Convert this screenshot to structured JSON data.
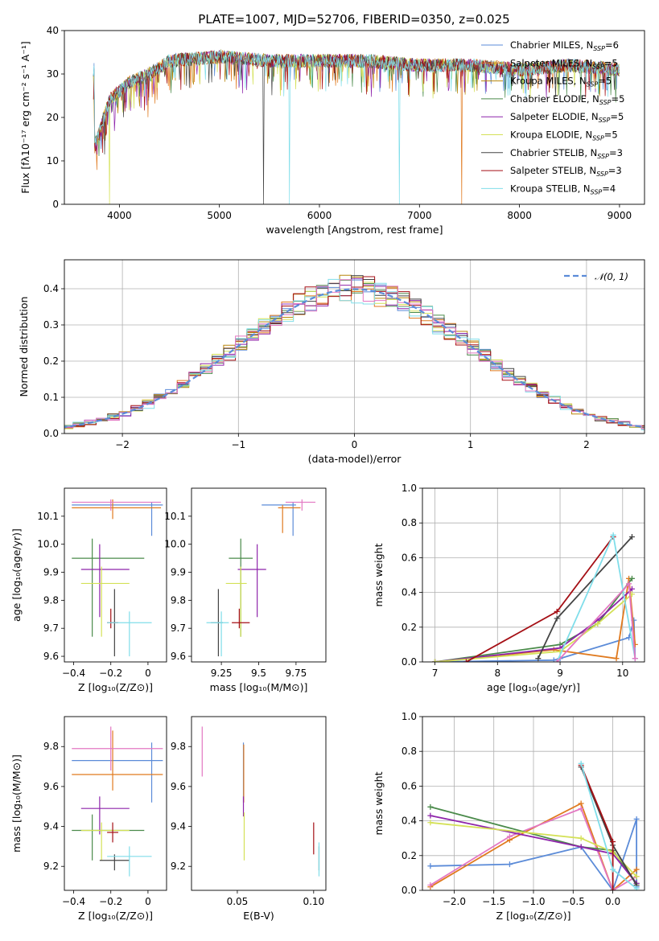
{
  "title": "PLATE=1007, MJD=52706, FIBERID=0350, z=0.025",
  "colors": [
    "#5b8bd8",
    "#e07a1f",
    "#b8860b",
    "#4a8a4a",
    "#8e24aa",
    "#d4e157",
    "#444444",
    "#a50f15",
    "#80deea",
    "#e377c2"
  ],
  "chart_data": [
    {
      "name": "spectrum",
      "type": "line",
      "xlabel": "wavelength [Angstrom, rest frame]",
      "ylabel": "Flux [fλ10⁻¹⁷ erg cm⁻² s⁻¹ A⁻¹]",
      "xlim": [
        3450,
        9250
      ],
      "ylim": [
        0,
        40
      ],
      "xticks": [
        4000,
        5000,
        6000,
        7000,
        8000,
        9000
      ],
      "yticks": [
        0,
        10,
        20,
        30,
        40
      ],
      "grid": false,
      "legend": "top-right",
      "continuum": {
        "x": [
          3750,
          3900,
          4100,
          4300,
          4500,
          5000,
          5500,
          6000,
          6500,
          7000,
          7500,
          8000,
          8500,
          9000
        ],
        "y": [
          13,
          24,
          28,
          30,
          33,
          34,
          33,
          33,
          33,
          32,
          32,
          31,
          32,
          31
        ]
      },
      "drops": [
        {
          "series": 5,
          "x": 3900,
          "y": 0
        },
        {
          "series": 6,
          "x": 5440,
          "y": 0
        },
        {
          "series": 8,
          "x": 5700,
          "y": 0
        },
        {
          "series": 8,
          "x": 6800,
          "y": 0
        },
        {
          "series": 1,
          "x": 7420,
          "y": 0
        }
      ],
      "series": [
        {
          "name": "Chabrier MILES, N",
          "sub": "SSP",
          "suffix": "=6",
          "color": 0
        },
        {
          "name": "Salpeter MILES, N",
          "sub": "SSP",
          "suffix": "=5",
          "color": 1
        },
        {
          "name": "Kroupa MILES, N",
          "sub": "SSP",
          "suffix": "=5",
          "color": 2
        },
        {
          "name": "Chabrier ELODIE, N",
          "sub": "SSP",
          "suffix": "=5",
          "color": 3
        },
        {
          "name": "Salpeter ELODIE, N",
          "sub": "SSP",
          "suffix": "=5",
          "color": 4
        },
        {
          "name": "Kroupa ELODIE, N",
          "sub": "SSP",
          "suffix": "=5",
          "color": 5
        },
        {
          "name": "Chabrier STELIB, N",
          "sub": "SSP",
          "suffix": "=3",
          "color": 6
        },
        {
          "name": "Salpeter STELIB, N",
          "sub": "SSP",
          "suffix": "=3",
          "color": 7
        },
        {
          "name": "Kroupa STELIB, N",
          "sub": "SSP",
          "suffix": "=4",
          "color": 8
        }
      ]
    },
    {
      "name": "residual-histogram",
      "type": "area",
      "xlabel": "(data-model)/error",
      "ylabel": "Normed distribution",
      "xlim": [
        -2.5,
        2.5
      ],
      "ylim": [
        0,
        0.48
      ],
      "xticks": [
        -2,
        -1,
        0,
        1,
        2
      ],
      "yticks": [
        0.0,
        0.1,
        0.2,
        0.3,
        0.4
      ],
      "xtick_labels": [
        "−2",
        "−1",
        "0",
        "1",
        "2"
      ],
      "grid": true,
      "legend": "top-right",
      "legend_label": "𝒩(0, 1)",
      "reference": {
        "name": "N(0,1)",
        "mean": 0,
        "sigma": 1,
        "color": 0
      }
    },
    {
      "name": "age-vs-Z",
      "type": "scatter",
      "xlabel": "Z [log₁₀(Z/Z⊙)]",
      "ylabel": "age  [log₁₀(age/yr)]",
      "xlim": [
        -0.45,
        0.1
      ],
      "ylim": [
        9.58,
        10.2
      ],
      "xticks": [
        -0.4,
        -0.2,
        0.0
      ],
      "yticks": [
        9.6,
        9.7,
        9.8,
        9.9,
        10.0,
        10.1
      ],
      "points": [
        {
          "c": 0,
          "x": 0.02,
          "y": 10.14,
          "xe": [
            -0.41,
            0.08
          ],
          "ye": [
            10.03,
            10.15
          ]
        },
        {
          "c": 1,
          "x": -0.19,
          "y": 10.13,
          "xe": [
            -0.41,
            0.07
          ],
          "ye": [
            10.09,
            10.16
          ]
        },
        {
          "c": 9,
          "x": -0.2,
          "y": 10.15,
          "xe": [
            -0.41,
            0.07
          ],
          "ye": [
            10.12,
            10.16
          ]
        },
        {
          "c": 3,
          "x": -0.3,
          "y": 9.95,
          "xe": [
            -0.41,
            -0.02
          ],
          "ye": [
            9.67,
            10.02
          ]
        },
        {
          "c": 4,
          "x": -0.26,
          "y": 9.91,
          "xe": [
            -0.36,
            -0.1
          ],
          "ye": [
            9.74,
            10.0
          ]
        },
        {
          "c": 5,
          "x": -0.25,
          "y": 9.86,
          "xe": [
            -0.36,
            -0.1
          ],
          "ye": [
            9.67,
            9.92
          ]
        },
        {
          "c": 6,
          "x": -0.18,
          "y": 9.72,
          "xe": [
            -0.2,
            -0.17
          ],
          "ye": [
            9.6,
            9.84
          ]
        },
        {
          "c": 7,
          "x": -0.2,
          "y": 9.72,
          "xe": [
            -0.22,
            -0.16
          ],
          "ye": [
            9.7,
            9.77
          ]
        },
        {
          "c": 8,
          "x": -0.1,
          "y": 9.72,
          "xe": [
            -0.22,
            0.02
          ],
          "ye": [
            9.6,
            9.76
          ]
        }
      ]
    },
    {
      "name": "age-vs-mass",
      "type": "scatter",
      "xlabel": "mass [log₁₀(M/M⊙)]",
      "ylabel": "",
      "xlim": [
        9.05,
        9.95
      ],
      "ylim": [
        9.58,
        10.2
      ],
      "xticks": [
        9.25,
        9.5,
        9.75
      ],
      "yticks": [
        9.6,
        9.7,
        9.8,
        9.9,
        10.0,
        10.1
      ],
      "points": [
        {
          "c": 0,
          "x": 9.73,
          "y": 10.14,
          "xe": [
            9.52,
            9.75
          ],
          "ye": [
            10.03,
            10.15
          ]
        },
        {
          "c": 1,
          "x": 9.66,
          "y": 10.13,
          "xe": [
            9.63,
            9.78
          ],
          "ye": [
            10.04,
            10.14
          ]
        },
        {
          "c": 9,
          "x": 9.79,
          "y": 10.15,
          "xe": [
            9.68,
            9.88
          ],
          "ye": [
            10.12,
            10.16
          ]
        },
        {
          "c": 3,
          "x": 9.38,
          "y": 9.95,
          "xe": [
            9.3,
            9.46
          ],
          "ye": [
            9.67,
            10.02
          ]
        },
        {
          "c": 4,
          "x": 9.49,
          "y": 9.91,
          "xe": [
            9.36,
            9.55
          ],
          "ye": [
            9.74,
            10.0
          ]
        },
        {
          "c": 5,
          "x": 9.38,
          "y": 9.86,
          "xe": [
            9.28,
            9.42
          ],
          "ye": [
            9.67,
            9.92
          ]
        },
        {
          "c": 6,
          "x": 9.23,
          "y": 9.72,
          "xe": [
            9.18,
            9.26
          ],
          "ye": [
            9.6,
            9.84
          ]
        },
        {
          "c": 7,
          "x": 9.37,
          "y": 9.72,
          "xe": [
            9.32,
            9.44
          ],
          "ye": [
            9.7,
            9.77
          ]
        },
        {
          "c": 8,
          "x": 9.25,
          "y": 9.72,
          "xe": [
            9.15,
            9.3
          ],
          "ye": [
            9.6,
            9.76
          ]
        }
      ]
    },
    {
      "name": "mass-weight-vs-age",
      "type": "line",
      "xlabel": "age  [log₁₀(age/yr)]",
      "ylabel": "mass weight",
      "xlim": [
        6.8,
        10.35
      ],
      "ylim": [
        0,
        1
      ],
      "xticks": [
        7,
        8,
        9,
        10
      ],
      "yticks": [
        0.0,
        0.2,
        0.4,
        0.6,
        0.8,
        1.0
      ],
      "grid": true,
      "series": [
        {
          "c": 0,
          "x": [
            7.0,
            8.9,
            9.0,
            10.1,
            10.18,
            10.2
          ],
          "y": [
            0.0,
            0.01,
            0.02,
            0.14,
            0.24,
            0.02
          ]
        },
        {
          "c": 1,
          "x": [
            7.0,
            8.9,
            9.9,
            10.1,
            10.2
          ],
          "y": [
            0.0,
            0.07,
            0.02,
            0.48,
            0.1
          ]
        },
        {
          "c": 3,
          "x": [
            7.0,
            9.0,
            9.6,
            10.15
          ],
          "y": [
            0.0,
            0.1,
            0.22,
            0.48
          ]
        },
        {
          "c": 4,
          "x": [
            7.0,
            9.0,
            9.6,
            10.15
          ],
          "y": [
            0.0,
            0.08,
            0.24,
            0.42
          ]
        },
        {
          "c": 5,
          "x": [
            7.0,
            9.0,
            9.6,
            10.15
          ],
          "y": [
            0.0,
            0.06,
            0.22,
            0.39
          ]
        },
        {
          "c": 6,
          "x": [
            8.65,
            8.95,
            10.15
          ],
          "y": [
            0.02,
            0.25,
            0.72
          ]
        },
        {
          "c": 7,
          "x": [
            7.5,
            8.95,
            9.85
          ],
          "y": [
            0.0,
            0.29,
            0.72
          ]
        },
        {
          "c": 8,
          "x": [
            8.95,
            9.85,
            10.2
          ],
          "y": [
            0.0,
            0.73,
            0.02
          ]
        },
        {
          "c": 9,
          "x": [
            8.95,
            10.1,
            10.2
          ],
          "y": [
            0.0,
            0.45,
            0.02
          ]
        }
      ]
    },
    {
      "name": "mass-vs-Z",
      "type": "scatter",
      "xlabel": "Z [log₁₀(Z/Z⊙)]",
      "ylabel": "mass [log₁₀(M/M⊙)]",
      "xlim": [
        -0.45,
        0.1
      ],
      "ylim": [
        9.08,
        9.95
      ],
      "xticks": [
        -0.4,
        -0.2,
        0.0
      ],
      "yticks": [
        9.2,
        9.4,
        9.6,
        9.8
      ],
      "points": [
        {
          "c": 0,
          "x": 0.02,
          "y": 9.73,
          "xe": [
            -0.41,
            0.08
          ],
          "ye": [
            9.52,
            9.82
          ]
        },
        {
          "c": 1,
          "x": -0.19,
          "y": 9.66,
          "xe": [
            -0.41,
            0.08
          ],
          "ye": [
            9.58,
            9.88
          ]
        },
        {
          "c": 9,
          "x": -0.2,
          "y": 9.79,
          "xe": [
            -0.41,
            0.08
          ],
          "ye": [
            9.68,
            9.9
          ]
        },
        {
          "c": 4,
          "x": -0.26,
          "y": 9.49,
          "xe": [
            -0.36,
            -0.1
          ],
          "ye": [
            9.36,
            9.55
          ]
        },
        {
          "c": 3,
          "x": -0.3,
          "y": 9.38,
          "xe": [
            -0.41,
            -0.02
          ],
          "ye": [
            9.23,
            9.46
          ]
        },
        {
          "c": 5,
          "x": -0.25,
          "y": 9.38,
          "xe": [
            -0.36,
            -0.1
          ],
          "ye": [
            9.23,
            9.42
          ]
        },
        {
          "c": 6,
          "x": -0.18,
          "y": 9.23,
          "xe": [
            -0.26,
            -0.1
          ],
          "ye": [
            9.18,
            9.26
          ]
        },
        {
          "c": 7,
          "x": -0.19,
          "y": 9.37,
          "xe": [
            -0.22,
            -0.16
          ],
          "ye": [
            9.32,
            9.42
          ]
        },
        {
          "c": 8,
          "x": -0.1,
          "y": 9.25,
          "xe": [
            -0.22,
            0.02
          ],
          "ye": [
            9.15,
            9.3
          ]
        }
      ]
    },
    {
      "name": "mass-vs-EBV",
      "type": "scatter",
      "xlabel": "E(B-V)",
      "ylabel": "",
      "xlim": [
        0.02,
        0.108
      ],
      "ylim": [
        9.08,
        9.95
      ],
      "xticks": [
        0.05,
        0.1
      ],
      "xtick_labels": [
        "0.05",
        "0.10"
      ],
      "yticks": [
        9.2,
        9.4,
        9.6,
        9.8
      ],
      "points": [
        {
          "c": 9,
          "x": 0.027,
          "y": 9.79,
          "ye": [
            9.65,
            9.9
          ]
        },
        {
          "c": 0,
          "x": 0.054,
          "y": 9.73,
          "ye": [
            9.52,
            9.82
          ]
        },
        {
          "c": 1,
          "x": 0.0542,
          "y": 9.66,
          "ye": [
            9.52,
            9.81
          ]
        },
        {
          "c": 4,
          "x": 0.054,
          "y": 9.49,
          "ye": [
            9.45,
            9.55
          ]
        },
        {
          "c": 5,
          "x": 0.0545,
          "y": 9.38,
          "ye": [
            9.23,
            9.47
          ]
        },
        {
          "c": 7,
          "x": 0.1,
          "y": 9.37,
          "ye": [
            9.26,
            9.42
          ]
        },
        {
          "c": 6,
          "x": 0.1035,
          "y": 9.23,
          "ye": [
            9.18,
            9.3
          ]
        },
        {
          "c": 8,
          "x": 0.1035,
          "y": 9.25,
          "ye": [
            9.15,
            9.32
          ]
        }
      ]
    },
    {
      "name": "mass-weight-vs-Z",
      "type": "line",
      "xlabel": "Z [log₁₀(Z/Z⊙)]",
      "ylabel": "mass weight",
      "xlim": [
        -2.4,
        0.4
      ],
      "ylim": [
        0,
        1
      ],
      "xticks": [
        -2.0,
        -1.5,
        -1.0,
        -0.5,
        0.0
      ],
      "xtick_labels": [
        "−2.0",
        "−1.5",
        "−1.0",
        "−0.5",
        "0.0"
      ],
      "yticks": [
        0.0,
        0.2,
        0.4,
        0.6,
        0.8,
        1.0
      ],
      "grid": true,
      "series": [
        {
          "c": 0,
          "x": [
            -2.3,
            -1.3,
            -0.4,
            0.0,
            0.3,
            0.3
          ],
          "y": [
            0.14,
            0.15,
            0.25,
            0.0,
            0.41,
            0.02
          ]
        },
        {
          "c": 1,
          "x": [
            -2.3,
            -1.3,
            -0.4,
            0.0,
            0.3
          ],
          "y": [
            0.02,
            0.29,
            0.5,
            0.0,
            0.12
          ]
        },
        {
          "c": 9,
          "x": [
            -2.3,
            -1.3,
            -0.4,
            0.0,
            0.3
          ],
          "y": [
            0.03,
            0.31,
            0.47,
            0.0,
            0.08
          ]
        },
        {
          "c": 3,
          "x": [
            -2.3,
            -0.4,
            0.0,
            0.3
          ],
          "y": [
            0.48,
            0.25,
            0.23,
            0.04
          ]
        },
        {
          "c": 4,
          "x": [
            -2.3,
            -0.4,
            0.0,
            0.3
          ],
          "y": [
            0.43,
            0.25,
            0.21,
            0.04
          ]
        },
        {
          "c": 5,
          "x": [
            -2.3,
            -0.4,
            0.0,
            0.3
          ],
          "y": [
            0.39,
            0.3,
            0.22,
            0.08
          ]
        },
        {
          "c": 6,
          "x": [
            -0.4,
            0.0,
            0.3
          ],
          "y": [
            0.71,
            0.26,
            0.03
          ]
        },
        {
          "c": 7,
          "x": [
            -0.4,
            0.0,
            0.0
          ],
          "y": [
            0.72,
            0.28,
            0.0
          ]
        },
        {
          "c": 8,
          "x": [
            -0.4,
            0.0,
            0.3
          ],
          "y": [
            0.73,
            0.12,
            0.01
          ]
        }
      ]
    }
  ]
}
